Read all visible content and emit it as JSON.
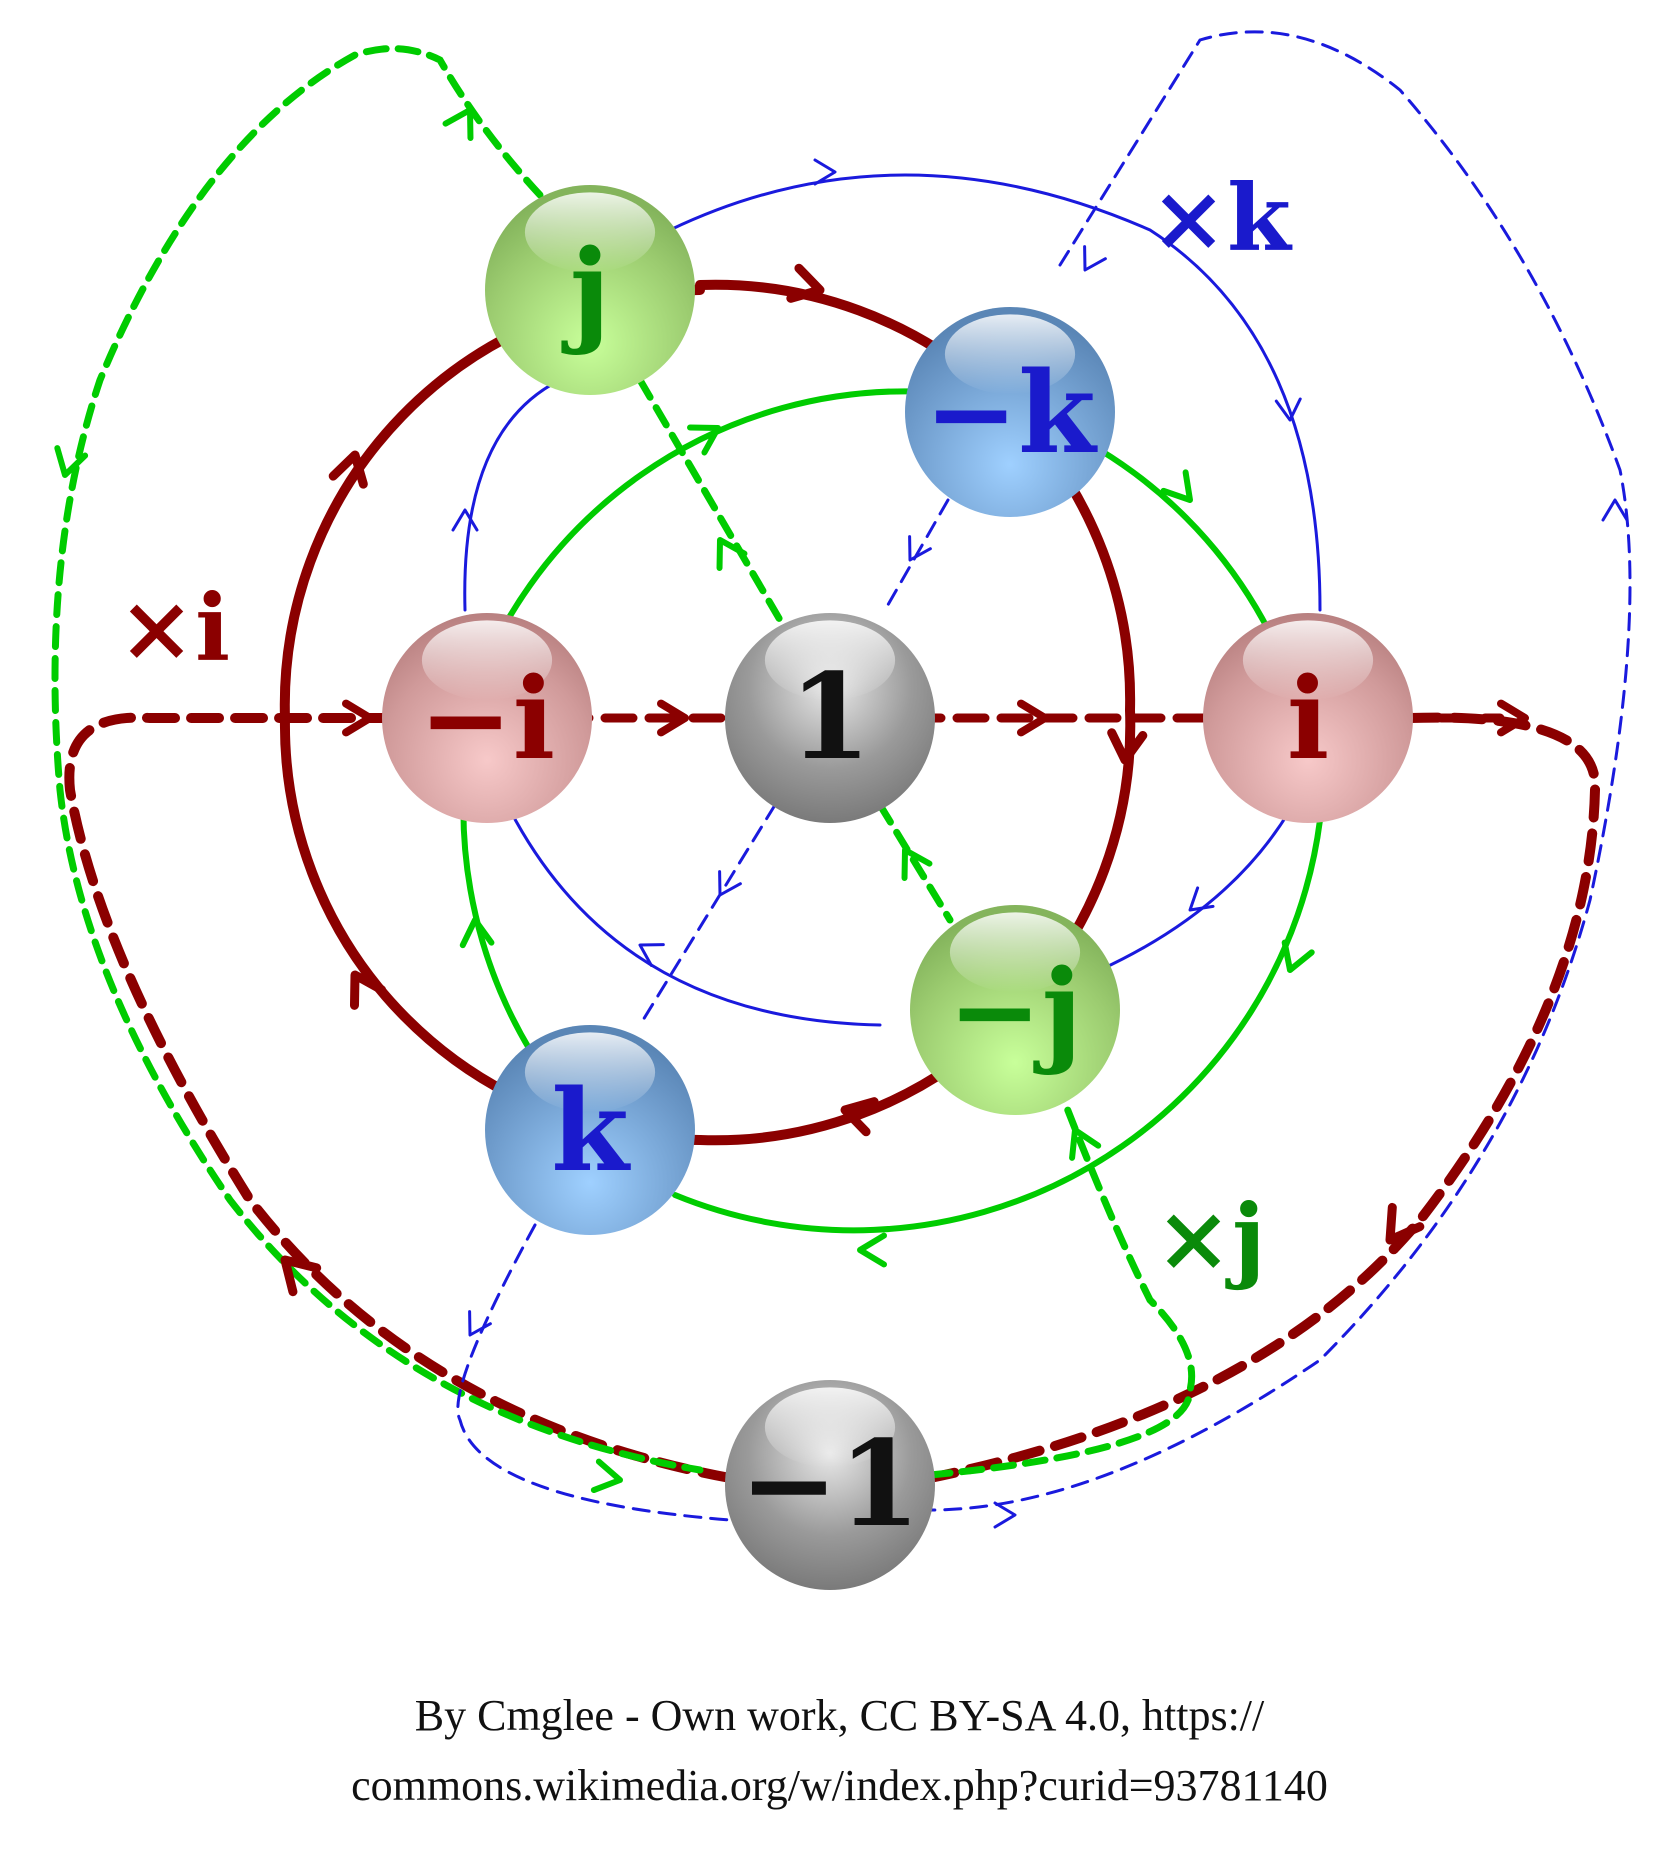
{
  "nodes": {
    "one": {
      "label": "1",
      "kind": "gray",
      "textColor": "#111111"
    },
    "neg_one": {
      "label": "−1",
      "kind": "gray",
      "textColor": "#111111"
    },
    "i": {
      "label": "i",
      "kind": "red",
      "textColor": "#8b0000"
    },
    "neg_i": {
      "label": "−i",
      "kind": "red",
      "textColor": "#8b0000"
    },
    "j": {
      "label": "j",
      "kind": "green",
      "textColor": "#0a8a0a"
    },
    "neg_j": {
      "label": "−j",
      "kind": "green",
      "textColor": "#0a8a0a"
    },
    "k": {
      "label": "k",
      "kind": "blue",
      "textColor": "#1a1acc"
    },
    "neg_k": {
      "label": "−k",
      "kind": "blue",
      "textColor": "#1a1acc"
    }
  },
  "operators": {
    "times_i": {
      "label": "×i",
      "color": "#8b0000"
    },
    "times_j": {
      "label": "×j",
      "color": "#0a8a0a"
    },
    "times_k": {
      "label": "×k",
      "color": "#1a1acc"
    }
  },
  "colors": {
    "i_path": "#8b0000",
    "j_path": "#00cc00",
    "k_path": "#1a1add"
  },
  "credit": {
    "line1": "By Cmglee - Own work, CC BY-SA 4.0, https://",
    "line2": "commons.wikimedia.org/w/index.php?curid=93781140"
  }
}
